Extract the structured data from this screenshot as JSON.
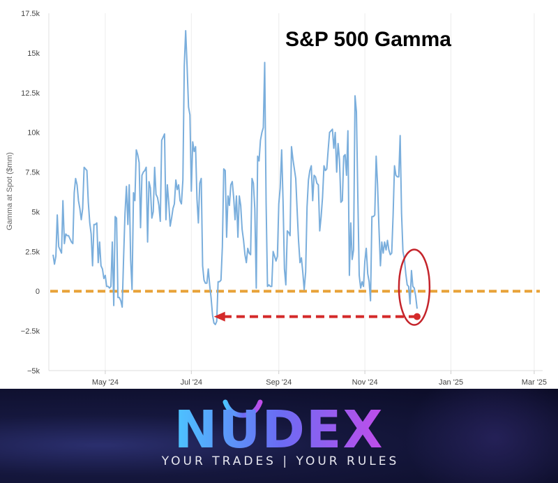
{
  "chart_data": {
    "type": "line",
    "title": "S&P 500 Gamma",
    "ylabel": "Gamma at Spot ($mm)",
    "xlabel": "",
    "ylim": [
      -5000,
      17500
    ],
    "y_ticks": [
      -5000,
      -2500,
      0,
      2500,
      5000,
      7500,
      10000,
      12500,
      15000,
      17500
    ],
    "y_tick_labels": [
      "−5k",
      "−2.5k",
      "0",
      "2.5k",
      "5k",
      "7.5k",
      "10k",
      "12.5k",
      "15k",
      "17.5k"
    ],
    "x_ticks": [
      {
        "day": 39,
        "label": "May '24"
      },
      {
        "day": 100,
        "label": "Jul '24"
      },
      {
        "day": 162,
        "label": "Sep '24"
      },
      {
        "day": 223,
        "label": "Nov '24"
      },
      {
        "day": 284,
        "label": "Jan '25"
      },
      {
        "day": 343,
        "label": "Mar '25"
      }
    ],
    "x_day_range": [
      -1,
      349
    ],
    "grid": "vertical",
    "series": [
      {
        "name": "",
        "color": "#7aaedc",
        "points": [
          [
            2,
            2300
          ],
          [
            3,
            1700
          ],
          [
            4,
            2200
          ],
          [
            5,
            4800
          ],
          [
            6,
            2800
          ],
          [
            8,
            2400
          ],
          [
            9,
            5700
          ],
          [
            10,
            3000
          ],
          [
            11,
            3600
          ],
          [
            12,
            3500
          ],
          [
            13,
            3500
          ],
          [
            14,
            3300
          ],
          [
            15,
            3100
          ],
          [
            16,
            3000
          ],
          [
            17,
            6200
          ],
          [
            18,
            7100
          ],
          [
            19,
            6700
          ],
          [
            20,
            5700
          ],
          [
            21,
            5200
          ],
          [
            22,
            4500
          ],
          [
            23,
            5200
          ],
          [
            24,
            7800
          ],
          [
            25,
            7700
          ],
          [
            26,
            7600
          ],
          [
            27,
            5600
          ],
          [
            28,
            4300
          ],
          [
            29,
            3600
          ],
          [
            30,
            1600
          ],
          [
            31,
            4200
          ],
          [
            32,
            4200
          ],
          [
            33,
            4300
          ],
          [
            34,
            1800
          ],
          [
            35,
            3100
          ],
          [
            36,
            1600
          ],
          [
            37,
            1400
          ],
          [
            38,
            800
          ],
          [
            39,
            1000
          ],
          [
            40,
            300
          ],
          [
            41,
            300
          ],
          [
            42,
            200
          ],
          [
            43,
            300
          ],
          [
            44,
            3100
          ],
          [
            45,
            -900
          ],
          [
            46,
            4700
          ],
          [
            47,
            4600
          ],
          [
            48,
            -400
          ],
          [
            49,
            -400
          ],
          [
            50,
            -600
          ],
          [
            51,
            -1000
          ],
          [
            52,
            2100
          ],
          [
            53,
            4900
          ],
          [
            54,
            6600
          ],
          [
            55,
            4200
          ],
          [
            56,
            6700
          ],
          [
            57,
            2000
          ],
          [
            58,
            100
          ],
          [
            59,
            6200
          ],
          [
            60,
            5700
          ],
          [
            61,
            8900
          ],
          [
            62,
            8600
          ],
          [
            63,
            8100
          ],
          [
            64,
            4000
          ],
          [
            65,
            7300
          ],
          [
            66,
            7500
          ],
          [
            67,
            7600
          ],
          [
            68,
            7800
          ],
          [
            69,
            3100
          ],
          [
            70,
            6900
          ],
          [
            71,
            6500
          ],
          [
            72,
            4600
          ],
          [
            73,
            5000
          ],
          [
            74,
            7800
          ],
          [
            75,
            6100
          ],
          [
            76,
            5900
          ],
          [
            77,
            5400
          ],
          [
            78,
            4400
          ],
          [
            79,
            9500
          ],
          [
            80,
            9700
          ],
          [
            81,
            9900
          ],
          [
            82,
            4500
          ],
          [
            83,
            6700
          ],
          [
            84,
            5600
          ],
          [
            85,
            4100
          ],
          [
            86,
            4600
          ],
          [
            87,
            5200
          ],
          [
            88,
            5500
          ],
          [
            89,
            7000
          ],
          [
            90,
            6400
          ],
          [
            91,
            6700
          ],
          [
            92,
            5700
          ],
          [
            93,
            5500
          ],
          [
            94,
            7000
          ],
          [
            95,
            14200
          ],
          [
            96,
            16400
          ],
          [
            97,
            14200
          ],
          [
            98,
            11600
          ],
          [
            99,
            11100
          ],
          [
            100,
            6300
          ],
          [
            101,
            9400
          ],
          [
            102,
            8800
          ],
          [
            103,
            9100
          ],
          [
            104,
            5800
          ],
          [
            105,
            4300
          ],
          [
            106,
            6800
          ],
          [
            107,
            7100
          ],
          [
            108,
            1600
          ],
          [
            109,
            700
          ],
          [
            110,
            500
          ],
          [
            111,
            500
          ],
          [
            112,
            1400
          ],
          [
            113,
            400
          ],
          [
            114,
            -400
          ],
          [
            115,
            -1500
          ],
          [
            116,
            -2000
          ],
          [
            117,
            -2100
          ],
          [
            118,
            -1900
          ],
          [
            119,
            600
          ],
          [
            120,
            600
          ],
          [
            121,
            700
          ],
          [
            122,
            2800
          ],
          [
            123,
            7700
          ],
          [
            124,
            7600
          ],
          [
            125,
            3400
          ],
          [
            126,
            6000
          ],
          [
            127,
            5400
          ],
          [
            128,
            6700
          ],
          [
            129,
            6900
          ],
          [
            130,
            5900
          ],
          [
            131,
            4500
          ],
          [
            132,
            6000
          ],
          [
            133,
            3400
          ],
          [
            134,
            6000
          ],
          [
            135,
            5400
          ],
          [
            136,
            3900
          ],
          [
            137,
            3200
          ],
          [
            138,
            2300
          ],
          [
            139,
            1800
          ],
          [
            140,
            2700
          ],
          [
            141,
            2400
          ],
          [
            142,
            2300
          ],
          [
            143,
            7100
          ],
          [
            144,
            6800
          ],
          [
            145,
            5200
          ],
          [
            146,
            200
          ],
          [
            147,
            8500
          ],
          [
            148,
            8200
          ],
          [
            149,
            9500
          ],
          [
            150,
            10000
          ],
          [
            151,
            10300
          ],
          [
            152,
            14400
          ],
          [
            153,
            5600
          ],
          [
            154,
            300
          ],
          [
            155,
            400
          ],
          [
            156,
            300
          ],
          [
            157,
            300
          ],
          [
            158,
            2500
          ],
          [
            159,
            2200
          ],
          [
            160,
            1900
          ],
          [
            161,
            2200
          ],
          [
            162,
            5500
          ],
          [
            163,
            6500
          ],
          [
            164,
            8900
          ],
          [
            165,
            5700
          ],
          [
            166,
            1400
          ],
          [
            167,
            400
          ],
          [
            168,
            3800
          ],
          [
            169,
            3700
          ],
          [
            170,
            3500
          ],
          [
            171,
            9100
          ],
          [
            172,
            8300
          ],
          [
            173,
            7700
          ],
          [
            174,
            7100
          ],
          [
            175,
            5100
          ],
          [
            176,
            3200
          ],
          [
            177,
            1800
          ],
          [
            178,
            2100
          ],
          [
            179,
            1200
          ],
          [
            180,
            100
          ],
          [
            181,
            1200
          ],
          [
            182,
            5300
          ],
          [
            183,
            7000
          ],
          [
            184,
            7600
          ],
          [
            185,
            7900
          ],
          [
            186,
            5700
          ],
          [
            187,
            7300
          ],
          [
            188,
            7200
          ],
          [
            189,
            6800
          ],
          [
            190,
            6700
          ],
          [
            191,
            3800
          ],
          [
            192,
            4700
          ],
          [
            193,
            5900
          ],
          [
            194,
            7900
          ],
          [
            195,
            7600
          ],
          [
            196,
            7700
          ],
          [
            197,
            8900
          ],
          [
            198,
            10000
          ],
          [
            199,
            10100
          ],
          [
            200,
            10200
          ],
          [
            201,
            9000
          ],
          [
            202,
            10000
          ],
          [
            203,
            7500
          ],
          [
            204,
            9300
          ],
          [
            205,
            8300
          ],
          [
            206,
            5600
          ],
          [
            207,
            5700
          ],
          [
            208,
            8500
          ],
          [
            209,
            8600
          ],
          [
            210,
            7300
          ],
          [
            211,
            10100
          ],
          [
            212,
            1000
          ],
          [
            213,
            4300
          ],
          [
            214,
            2000
          ],
          [
            215,
            2600
          ],
          [
            216,
            12300
          ],
          [
            217,
            11300
          ],
          [
            218,
            6000
          ],
          [
            219,
            1000
          ],
          [
            220,
            200
          ],
          [
            221,
            600
          ],
          [
            222,
            300
          ],
          [
            223,
            1900
          ],
          [
            224,
            2700
          ],
          [
            225,
            1100
          ],
          [
            226,
            600
          ],
          [
            227,
            -600
          ],
          [
            228,
            4700
          ],
          [
            229,
            4700
          ],
          [
            230,
            4800
          ],
          [
            231,
            8500
          ],
          [
            232,
            6700
          ],
          [
            233,
            4000
          ],
          [
            234,
            1600
          ],
          [
            235,
            3100
          ],
          [
            236,
            2400
          ],
          [
            237,
            3100
          ],
          [
            238,
            2600
          ],
          [
            239,
            3200
          ],
          [
            240,
            2600
          ],
          [
            241,
            2300
          ],
          [
            242,
            2400
          ],
          [
            243,
            4800
          ],
          [
            244,
            7900
          ],
          [
            245,
            7300
          ],
          [
            246,
            7200
          ],
          [
            247,
            7200
          ],
          [
            248,
            9800
          ],
          [
            249,
            4900
          ],
          [
            250,
            2500
          ],
          [
            251,
            2000
          ],
          [
            252,
            1100
          ],
          [
            253,
            400
          ],
          [
            254,
            300
          ],
          [
            255,
            -800
          ],
          [
            256,
            1300
          ],
          [
            257,
            300
          ],
          [
            258,
            200
          ],
          [
            259,
            -300
          ],
          [
            260,
            -1100
          ]
        ]
      }
    ],
    "reference_line": {
      "y": 0,
      "style": "dashed",
      "color": "#e8a33a"
    },
    "annotations": [
      {
        "type": "dashed-arrow",
        "color": "#d42a2a",
        "from": [
          260,
          -1600
        ],
        "to": [
          116,
          -1600
        ]
      },
      {
        "type": "circle",
        "color": "#c4242b",
        "center": [
          258,
          250
        ]
      },
      {
        "type": "dot",
        "color": "#d42a2a",
        "at": [
          260,
          -1600
        ]
      }
    ]
  },
  "banner": {
    "logo": "NUDEX",
    "tagline": "YOUR TRADES | YOUR RULES",
    "colors": {
      "start": "#4cc4ff",
      "mid": "#6a6cf3",
      "end": "#c14dea",
      "background": "#0d0f2e"
    }
  }
}
